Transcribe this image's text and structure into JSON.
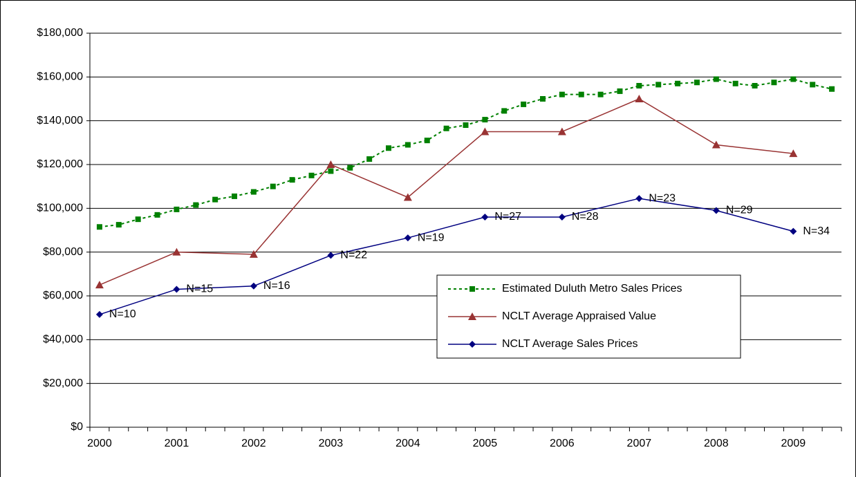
{
  "chart_data": {
    "type": "line",
    "categories": [
      "2000",
      null,
      null,
      null,
      "2001",
      null,
      null,
      null,
      "2002",
      null,
      null,
      null,
      "2003",
      null,
      null,
      null,
      "2004",
      null,
      null,
      null,
      "2005",
      null,
      null,
      null,
      "2006",
      null,
      null,
      null,
      "2007",
      null,
      null,
      null,
      "2008",
      null,
      null,
      null,
      "2009",
      null,
      null
    ],
    "ylim": [
      0,
      180000
    ],
    "yticks": [
      {
        "value": 0,
        "label": "$0"
      },
      {
        "value": 20000,
        "label": "$20,000"
      },
      {
        "value": 40000,
        "label": "$40,000"
      },
      {
        "value": 60000,
        "label": "$60,000"
      },
      {
        "value": 80000,
        "label": "$80,000"
      },
      {
        "value": 100000,
        "label": "$100,000"
      },
      {
        "value": 120000,
        "label": "$120,000"
      },
      {
        "value": 140000,
        "label": "$140,000"
      },
      {
        "value": 160000,
        "label": "$160,000"
      },
      {
        "value": 180000,
        "label": "$180,000"
      }
    ],
    "grid": true,
    "series": [
      {
        "name": "Estimated Duluth Metro Sales Prices",
        "color": "#008000",
        "marker": "square",
        "dash": true,
        "values": [
          91500,
          92500,
          95000,
          97000,
          99500,
          101500,
          104000,
          105500,
          107500,
          110000,
          113000,
          115000,
          117000,
          118500,
          122500,
          127500,
          129000,
          131000,
          136500,
          138000,
          140500,
          144500,
          147500,
          150000,
          152000,
          152000,
          152000,
          153500,
          156000,
          156500,
          157000,
          157500,
          159000,
          157000,
          156000,
          157500,
          159000,
          156500,
          154500
        ]
      },
      {
        "name": "NCLT Average Appraised Value",
        "color": "#993333",
        "marker": "triangle",
        "values": [
          65000,
          null,
          null,
          null,
          80000,
          null,
          null,
          null,
          79000,
          null,
          null,
          null,
          120000,
          null,
          null,
          null,
          105000,
          null,
          null,
          null,
          135000,
          null,
          null,
          null,
          135000,
          null,
          null,
          null,
          150000,
          null,
          null,
          null,
          129000,
          null,
          null,
          null,
          125000,
          null,
          null
        ]
      },
      {
        "name": "NCLT Average Sales Prices",
        "color": "#000080",
        "marker": "diamond",
        "values": [
          51500,
          null,
          null,
          null,
          63000,
          null,
          null,
          null,
          64500,
          null,
          null,
          null,
          78500,
          null,
          null,
          null,
          86500,
          null,
          null,
          null,
          96000,
          null,
          null,
          null,
          96000,
          null,
          null,
          null,
          104500,
          null,
          null,
          null,
          99000,
          null,
          null,
          null,
          89500,
          null,
          null
        ],
        "point_labels": [
          "N=10",
          null,
          null,
          null,
          "N=15",
          null,
          null,
          null,
          "N=16",
          null,
          null,
          null,
          "N=22",
          null,
          null,
          null,
          "N=19",
          null,
          null,
          null,
          "N=27",
          null,
          null,
          null,
          "N=28",
          null,
          null,
          null,
          "N=23",
          null,
          null,
          null,
          "N=29",
          null,
          null,
          null,
          "N=34",
          null,
          null
        ]
      }
    ]
  }
}
